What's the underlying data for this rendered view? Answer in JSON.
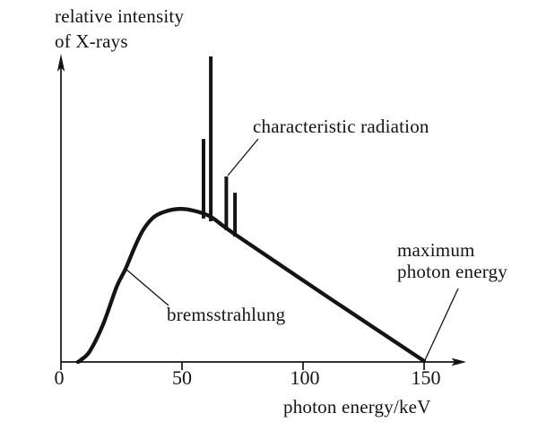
{
  "figure": {
    "background": "#ffffff",
    "ink_color": "#141414"
  },
  "chart_data": {
    "type": "line",
    "title": "",
    "xlabel": "photon energy/keV",
    "ylabel": "relative intensity of X-rays",
    "ylabel_line1": "relative intensity",
    "ylabel_line2": "of X-rays",
    "x_ticks": [
      "0",
      "50",
      "100",
      "150"
    ],
    "x_tick_values": [
      0,
      50,
      100,
      150
    ],
    "xlim": [
      0,
      165
    ],
    "ylim": [
      0,
      1.05
    ],
    "grid": false,
    "legend": "none",
    "series": [
      {
        "name": "bremsstrahlung",
        "type": "smooth_line",
        "x_keV": [
          7.0,
          8.1,
          11.9,
          17.4,
          23.0,
          26.7,
          30.4,
          34.1,
          38.5,
          43.3,
          48.9,
          54.4,
          61.9,
          72.2,
          111.1,
          150.0
        ],
        "y_rel": [
          0.0,
          0.006,
          0.035,
          0.123,
          0.246,
          0.305,
          0.375,
          0.434,
          0.475,
          0.493,
          0.501,
          0.496,
          0.475,
          0.416,
          0.208,
          0.003
        ]
      },
      {
        "name": "characteristic radiation",
        "type": "vertical_spikes",
        "spikes": [
          {
            "x_keV": 58.9,
            "top_rel": 0.73,
            "base_rel": 0.487
          },
          {
            "x_keV": 61.9,
            "top_rel": 1.0,
            "base_rel": 0.478
          },
          {
            "x_keV": 68.3,
            "top_rel": 0.607,
            "base_rel": 0.449
          },
          {
            "x_keV": 71.9,
            "top_rel": 0.554,
            "base_rel": 0.428
          }
        ]
      }
    ],
    "annotations": {
      "characteristic": {
        "label": "characteristic radiation"
      },
      "bremsstrahlung": {
        "label": "bremsstrahlung"
      },
      "maximum": {
        "label_line1": "maximum",
        "label_line2": "photon energy"
      }
    }
  }
}
